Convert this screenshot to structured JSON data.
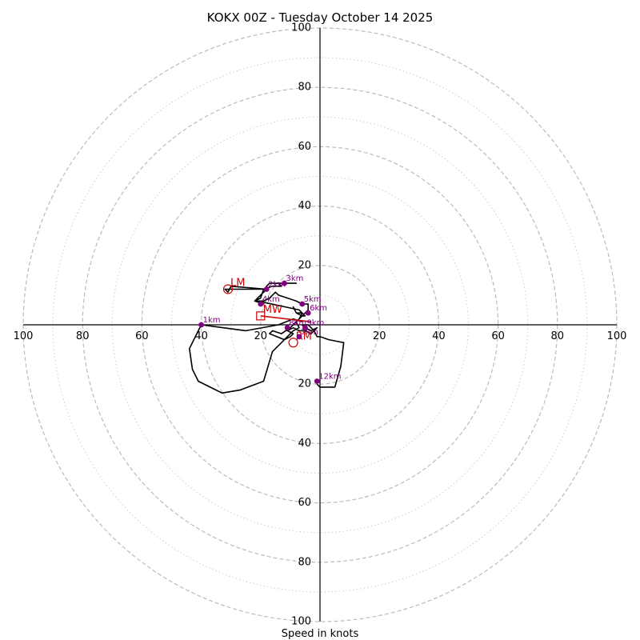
{
  "chart_data": {
    "type": "hodograph",
    "title": "KOKX 00Z - Tuesday October 14 2025",
    "xlabel": "Speed in knots",
    "range": [
      -100,
      100
    ],
    "ring_values": [
      20,
      40,
      60,
      80,
      100
    ],
    "minor_ring_values": [
      10,
      30,
      50,
      70,
      90
    ],
    "tick_values": [
      20,
      40,
      60,
      80,
      100
    ],
    "colors": {
      "trace": "#000000",
      "height_marker": "#800080",
      "storm_motion": "#cc0000",
      "grid": "#bbbbbb"
    },
    "trace": [
      [
        -6,
        1
      ],
      [
        -9,
        2
      ],
      [
        -14,
        0
      ],
      [
        -25,
        -2
      ],
      [
        -40,
        0
      ],
      [
        -44,
        -8
      ],
      [
        -43,
        -15
      ],
      [
        -41,
        -19
      ],
      [
        -37,
        -21
      ],
      [
        -33,
        -23
      ],
      [
        -27,
        -22
      ],
      [
        -19,
        -19
      ],
      [
        -16,
        -9
      ],
      [
        -13,
        -6
      ],
      [
        -11,
        -4
      ],
      [
        -9,
        -2
      ],
      [
        -7,
        -1
      ],
      [
        -8,
        1
      ],
      [
        -6,
        3
      ],
      [
        -4,
        5
      ],
      [
        -4,
        7
      ],
      [
        -6,
        7
      ],
      [
        -8,
        8
      ],
      [
        -14,
        10
      ],
      [
        -15,
        11
      ],
      [
        -17,
        9
      ],
      [
        -19,
        8
      ],
      [
        -22,
        8
      ],
      [
        -18,
        12
      ],
      [
        -30,
        13
      ],
      [
        -31,
        11
      ],
      [
        -32,
        12
      ],
      [
        -32,
        12
      ],
      [
        -32,
        12
      ],
      [
        -18,
        12
      ],
      [
        -18,
        13
      ],
      [
        -17,
        14
      ],
      [
        -15,
        14
      ],
      [
        -8,
        14
      ],
      [
        -14,
        14
      ],
      [
        -13,
        13
      ],
      [
        -16,
        13
      ],
      [
        -19,
        12
      ],
      [
        -20,
        9
      ],
      [
        -22,
        8
      ],
      [
        -19,
        7
      ],
      [
        -20,
        7
      ],
      [
        -21,
        8
      ],
      [
        -7,
        5
      ],
      [
        -5,
        3
      ],
      [
        -6,
        3
      ],
      [
        -8,
        4
      ],
      [
        -9,
        6
      ],
      [
        -8,
        4
      ],
      [
        -6,
        4
      ],
      [
        -7,
        2
      ],
      [
        -10,
        -1
      ],
      [
        -13,
        -3
      ],
      [
        -16,
        -2
      ],
      [
        -17,
        -3
      ],
      [
        -12,
        -5
      ],
      [
        -10,
        -4
      ],
      [
        -9,
        -3
      ],
      [
        -11,
        -2
      ],
      [
        -9,
        -1
      ],
      [
        -7,
        -2
      ],
      [
        -5,
        -2
      ],
      [
        -3,
        -3
      ],
      [
        -1,
        -1
      ],
      [
        -3,
        -2
      ],
      [
        -5,
        -1
      ],
      [
        -6,
        0
      ],
      [
        -4,
        0
      ],
      [
        -2,
        -2
      ],
      [
        -1,
        -4
      ],
      [
        0,
        -4
      ],
      [
        3,
        -5
      ],
      [
        8,
        -6
      ],
      [
        7,
        -14
      ],
      [
        5,
        -21
      ],
      [
        0,
        -21
      ],
      [
        -1,
        -20
      ]
    ],
    "height_markers": [
      {
        "label": "1km",
        "u": -40,
        "v": 0
      },
      {
        "label": "2km",
        "u": -18,
        "v": 12
      },
      {
        "label": "3km",
        "u": -12,
        "v": 14
      },
      {
        "label": "4km",
        "u": -20,
        "v": 7
      },
      {
        "label": "5km",
        "u": -6,
        "v": 7
      },
      {
        "label": "6km",
        "u": -4,
        "v": 4
      },
      {
        "label": "7km",
        "u": -7,
        "v": -4
      },
      {
        "label": "8km",
        "u": -11,
        "v": -1
      },
      {
        "label": "9km",
        "u": -5,
        "v": -1
      },
      {
        "label": "12km",
        "u": -1,
        "v": -19
      }
    ],
    "storm_motions": [
      {
        "label": "LM",
        "u": -31,
        "v": 12,
        "symbol": "circle"
      },
      {
        "label": "RM",
        "u": -9,
        "v": -6,
        "symbol": "circle"
      },
      {
        "label": "MW",
        "u": -20,
        "v": 3,
        "symbol": "square"
      }
    ],
    "shear_vector": {
      "from_u": -20,
      "from_v": 3,
      "to_u": -3,
      "to_v": 1
    }
  }
}
